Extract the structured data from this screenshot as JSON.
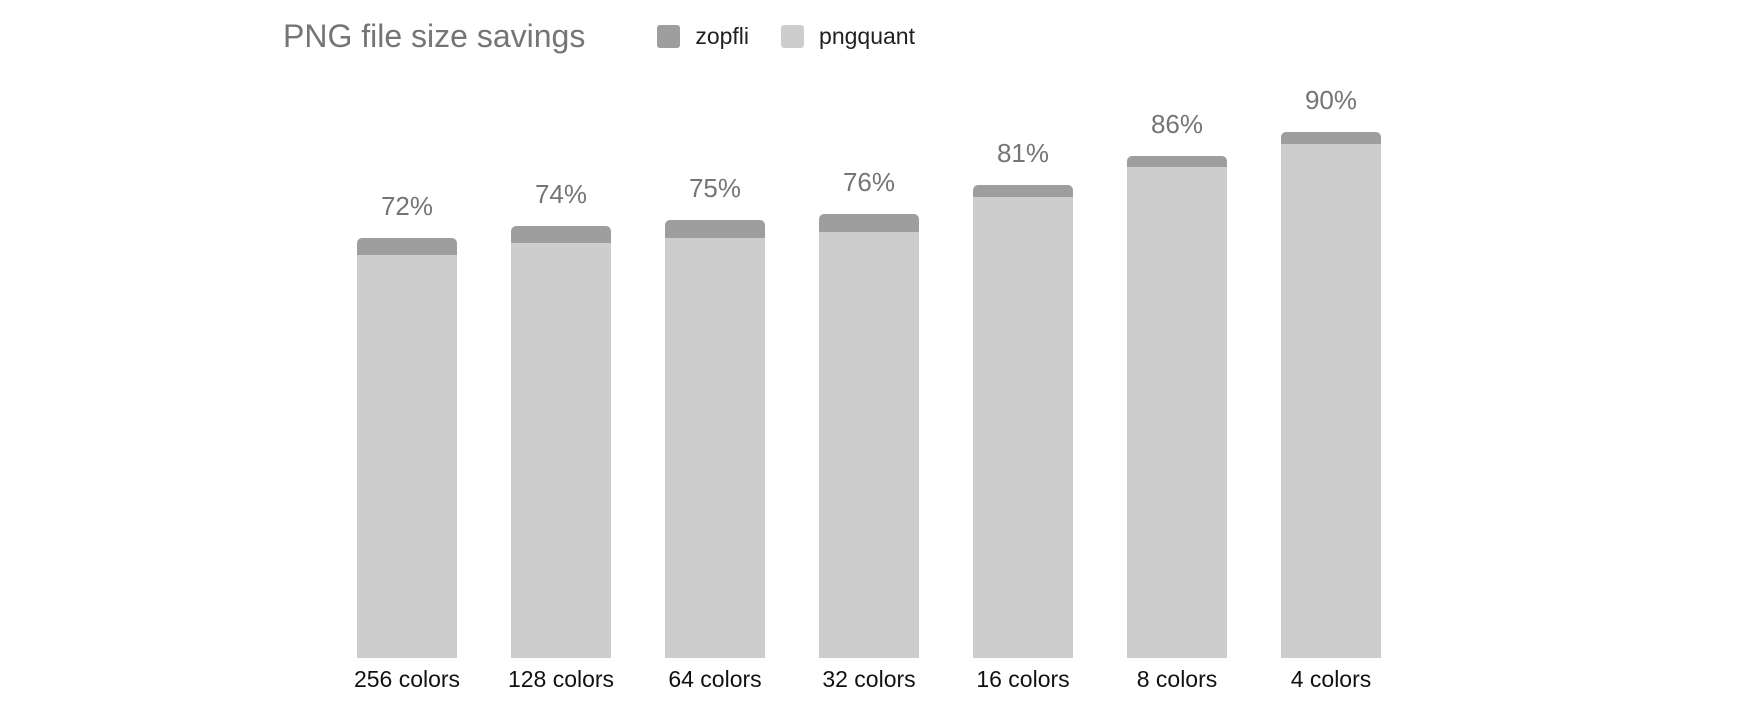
{
  "chart_data": {
    "type": "bar",
    "stacked": true,
    "title": "PNG file size savings",
    "categories": [
      "256 colors",
      "128 colors",
      "64 colors",
      "32 colors",
      "16 colors",
      "8 colors",
      "4 colors"
    ],
    "series": [
      {
        "name": "zopfli",
        "color": "#9e9e9e",
        "stack_position": "top",
        "values": [
          3,
          3,
          3,
          3,
          2,
          2,
          2
        ]
      },
      {
        "name": "pngquant",
        "color": "#cdcdcd",
        "stack_position": "bottom",
        "values": [
          69,
          71,
          72,
          73,
          79,
          84,
          88
        ]
      }
    ],
    "totals": [
      72,
      74,
      75,
      76,
      81,
      86,
      90
    ],
    "total_labels": [
      "72%",
      "74%",
      "75%",
      "76%",
      "81%",
      "86%",
      "90%"
    ],
    "xlabel": "",
    "ylabel": "",
    "ylim": [
      0,
      100
    ],
    "grid": false,
    "axes_visible": false,
    "legend_position": "top"
  },
  "legend": {
    "items": [
      {
        "label": "zopfli",
        "color": "#9e9e9e"
      },
      {
        "label": "pngquant",
        "color": "#cdcdcd"
      }
    ]
  },
  "colors": {
    "background": "#ffffff",
    "title_text": "#757575",
    "value_label_text": "#757575",
    "category_label_text": "#111111",
    "legend_text": "#212121"
  }
}
